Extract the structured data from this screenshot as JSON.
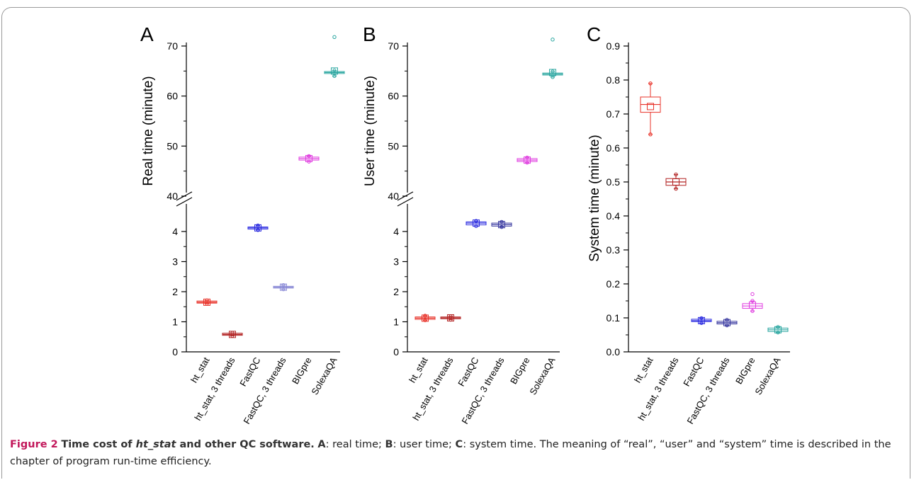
{
  "chart_data": [
    {
      "type": "box",
      "panel_label": "A",
      "ylabel": "Real time (minute)",
      "axis_break": true,
      "lower_ylim": [
        0,
        4.5
      ],
      "lower_ticks": [
        0,
        1,
        2,
        3,
        4
      ],
      "upper_ylim": [
        40,
        72
      ],
      "upper_ticks": [
        40,
        50,
        60,
        70
      ],
      "categories": [
        "ht_stat",
        "ht_stat, 3 threads",
        "FastQC",
        "FastQC, 3 threads",
        "BIGpre",
        "SolexaQA"
      ],
      "colors": [
        "#e8332a",
        "#b22222",
        "#2e2ee0",
        "#8a8ad6",
        "#e040e0",
        "#2aa6a0"
      ],
      "series": [
        {
          "q1": 1.62,
          "median": 1.65,
          "q3": 1.69,
          "mean": 1.65,
          "whisker_low": 1.6,
          "whisker_high": 1.71,
          "outliers": []
        },
        {
          "q1": 0.55,
          "median": 0.58,
          "q3": 0.62,
          "mean": 0.58,
          "whisker_low": 0.53,
          "whisker_high": 0.63,
          "outliers": []
        },
        {
          "q1": 4.08,
          "median": 4.12,
          "q3": 4.15,
          "mean": 4.12,
          "whisker_low": 4.05,
          "whisker_high": 4.2,
          "outliers": []
        },
        {
          "q1": 2.12,
          "median": 2.15,
          "q3": 2.18,
          "mean": 2.15,
          "whisker_low": 2.08,
          "whisker_high": 2.22,
          "outliers": []
        },
        {
          "q1": 47.2,
          "median": 47.5,
          "q3": 47.8,
          "mean": 47.5,
          "whisker_low": 46.9,
          "whisker_high": 48.0,
          "outliers": []
        },
        {
          "q1": 64.5,
          "median": 64.7,
          "q3": 64.9,
          "mean": 65.0,
          "whisker_low": 64.0,
          "whisker_high": 65.1,
          "outliers": [
            71.8
          ]
        }
      ]
    },
    {
      "type": "box",
      "panel_label": "B",
      "ylabel": "User time (minute)",
      "axis_break": true,
      "lower_ylim": [
        0,
        4.5
      ],
      "lower_ticks": [
        0,
        1,
        2,
        3,
        4
      ],
      "upper_ylim": [
        40,
        72
      ],
      "upper_ticks": [
        40,
        50,
        60,
        70
      ],
      "categories": [
        "ht_stat",
        "ht_stat, 3 threads",
        "FastQC",
        "FastQC, 3 threads",
        "BIGpre",
        "SolexaQA"
      ],
      "colors": [
        "#e8332a",
        "#b22222",
        "#2e2ee0",
        "#3a3aa0",
        "#e040e0",
        "#2aa6a0"
      ],
      "series": [
        {
          "q1": 1.08,
          "median": 1.12,
          "q3": 1.16,
          "mean": 1.12,
          "whisker_low": 1.05,
          "whisker_high": 1.2,
          "outliers": []
        },
        {
          "q1": 1.1,
          "median": 1.13,
          "q3": 1.16,
          "mean": 1.13,
          "whisker_low": 1.07,
          "whisker_high": 1.18,
          "outliers": []
        },
        {
          "q1": 4.22,
          "median": 4.28,
          "q3": 4.32,
          "mean": 4.28,
          "whisker_low": 4.18,
          "whisker_high": 4.35,
          "outliers": []
        },
        {
          "q1": 4.18,
          "median": 4.23,
          "q3": 4.28,
          "mean": 4.23,
          "whisker_low": 4.15,
          "whisker_high": 4.32,
          "outliers": []
        },
        {
          "q1": 46.9,
          "median": 47.2,
          "q3": 47.5,
          "mean": 47.2,
          "whisker_low": 46.7,
          "whisker_high": 47.7,
          "outliers": []
        },
        {
          "q1": 64.2,
          "median": 64.4,
          "q3": 64.6,
          "mean": 64.7,
          "whisker_low": 63.8,
          "whisker_high": 64.9,
          "outliers": [
            71.3
          ]
        }
      ]
    },
    {
      "type": "box",
      "panel_label": "C",
      "ylabel": "System time (minute)",
      "axis_break": false,
      "ylim": [
        0,
        0.9
      ],
      "ticks": [
        0.0,
        0.1,
        0.2,
        0.3,
        0.4,
        0.5,
        0.6,
        0.7,
        0.8,
        0.9
      ],
      "tick_labels": [
        "0.0",
        "0.1",
        "0.2",
        "0.3",
        "0.4",
        "0.5",
        "0.6",
        "0.7",
        "0.8",
        "0.9"
      ],
      "categories": [
        "ht_stat",
        "ht_stat, 3 threads",
        "FastQC",
        "FastQC, 3 threads",
        "BIGpre",
        "SolexaQA"
      ],
      "colors": [
        "#e8332a",
        "#b22222",
        "#2e2ee0",
        "#3a3aa0",
        "#e040e0",
        "#2aa6a0"
      ],
      "series": [
        {
          "q1": 0.705,
          "median": 0.728,
          "q3": 0.75,
          "mean": 0.722,
          "whisker_low": 0.64,
          "whisker_high": 0.79,
          "outliers": []
        },
        {
          "q1": 0.49,
          "median": 0.5,
          "q3": 0.51,
          "mean": 0.5,
          "whisker_low": 0.48,
          "whisker_high": 0.522,
          "outliers": []
        },
        {
          "q1": 0.089,
          "median": 0.092,
          "q3": 0.096,
          "mean": 0.092,
          "whisker_low": 0.085,
          "whisker_high": 0.099,
          "outliers": []
        },
        {
          "q1": 0.082,
          "median": 0.086,
          "q3": 0.09,
          "mean": 0.086,
          "whisker_low": 0.078,
          "whisker_high": 0.094,
          "outliers": []
        },
        {
          "q1": 0.128,
          "median": 0.135,
          "q3": 0.142,
          "mean": 0.138,
          "whisker_low": 0.12,
          "whisker_high": 0.15,
          "outliers": [
            0.17
          ]
        },
        {
          "q1": 0.06,
          "median": 0.065,
          "q3": 0.07,
          "mean": 0.065,
          "whisker_low": 0.057,
          "whisker_high": 0.073,
          "outliers": []
        }
      ]
    }
  ],
  "caption": {
    "figure_label": "Figure 2",
    "title_prefix": "Time cost of ",
    "title_em": "ht_stat",
    "title_suffix": " and other QC software.",
    "part_a_label": "A",
    "part_a_text": ": real time; ",
    "part_b_label": "B",
    "part_b_text": ": user time; ",
    "part_c_label": "C",
    "part_c_text": ": system time. The meaning of “real”, “user” and “system” time is described in the chapter of program run-time efficiency."
  }
}
